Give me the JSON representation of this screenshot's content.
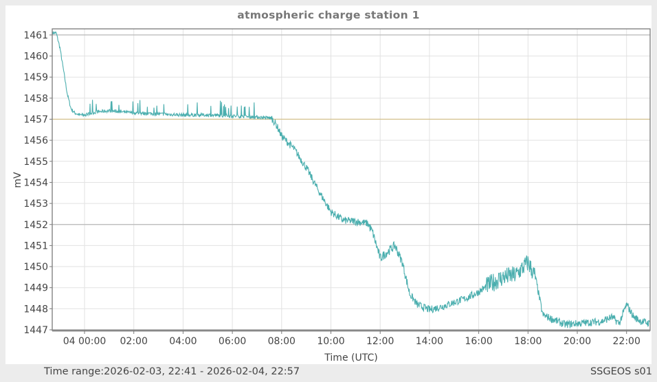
{
  "window": {
    "title": "atmospheric charge station 1",
    "footer_left": "Time range:2026-02-03, 22:41 - 2026-02-04, 22:57",
    "footer_right": "SSGEOS s01"
  },
  "colors": {
    "series": "#4aaeae",
    "reference_line_main": "#d2bf8a",
    "reference_line_gray": "#b8b8b8",
    "grid": "#e2e2e2",
    "axis": "#7a7a7a",
    "background": "#ececec"
  },
  "chart_data": {
    "type": "line",
    "title": "atmospheric charge station 1",
    "xlabel": "Time (UTC)",
    "ylabel": "mV",
    "ylim": [
      1447,
      1461.3
    ],
    "xlim": [
      "2026-02-03 22:41",
      "2026-02-04 22:57"
    ],
    "grid": true,
    "legend": null,
    "x_tick_labels": [
      "04 00:00",
      "02:00",
      "04:00",
      "06:00",
      "08:00",
      "10:00",
      "12:00",
      "14:00",
      "16:00",
      "18:00",
      "20:00",
      "22:00"
    ],
    "y_tick_labels": [
      "1447",
      "1448",
      "1449",
      "1450",
      "1451",
      "1452",
      "1453",
      "1454",
      "1455",
      "1456",
      "1457",
      "1458",
      "1459",
      "1460",
      "1461"
    ],
    "reference_lines": [
      {
        "y": 1461,
        "color": "#b8b8b8"
      },
      {
        "y": 1457,
        "color": "#d2bf8a"
      },
      {
        "y": 1452,
        "color": "#b8b8b8"
      }
    ],
    "series": [
      {
        "name": "atmospheric charge station 1",
        "unit": "mV",
        "x_hours_from_0000": [
          -1.3,
          -1.15,
          -1.0,
          -0.85,
          -0.7,
          -0.55,
          -0.4,
          -0.2,
          0.0,
          0.5,
          1.0,
          1.5,
          2.0,
          3.0,
          4.0,
          5.0,
          6.0,
          7.0,
          7.6,
          7.8,
          8.0,
          8.5,
          9.0,
          9.5,
          10.0,
          10.5,
          11.0,
          11.5,
          11.7,
          12.0,
          12.3,
          12.6,
          12.9,
          13.2,
          13.5,
          14.0,
          14.5,
          15.0,
          15.5,
          16.0,
          16.5,
          17.0,
          17.5,
          18.0,
          18.3,
          18.6,
          19.0,
          19.5,
          20.0,
          20.5,
          21.0,
          21.4,
          21.7,
          22.0,
          22.3,
          22.6,
          22.95
        ],
        "values": [
          1461.1,
          1461.1,
          1460.4,
          1459.3,
          1458.2,
          1457.5,
          1457.3,
          1457.2,
          1457.2,
          1457.35,
          1457.4,
          1457.35,
          1457.3,
          1457.25,
          1457.2,
          1457.2,
          1457.15,
          1457.1,
          1457.05,
          1456.7,
          1456.2,
          1455.6,
          1454.7,
          1453.6,
          1452.6,
          1452.2,
          1452.15,
          1452.05,
          1451.6,
          1450.4,
          1450.7,
          1451.0,
          1450.2,
          1448.7,
          1448.2,
          1447.95,
          1448.1,
          1448.3,
          1448.5,
          1448.8,
          1449.2,
          1449.5,
          1449.6,
          1450.2,
          1449.5,
          1447.7,
          1447.5,
          1447.25,
          1447.3,
          1447.35,
          1447.4,
          1447.6,
          1447.3,
          1448.2,
          1447.6,
          1447.4,
          1447.3
        ]
      }
    ]
  }
}
